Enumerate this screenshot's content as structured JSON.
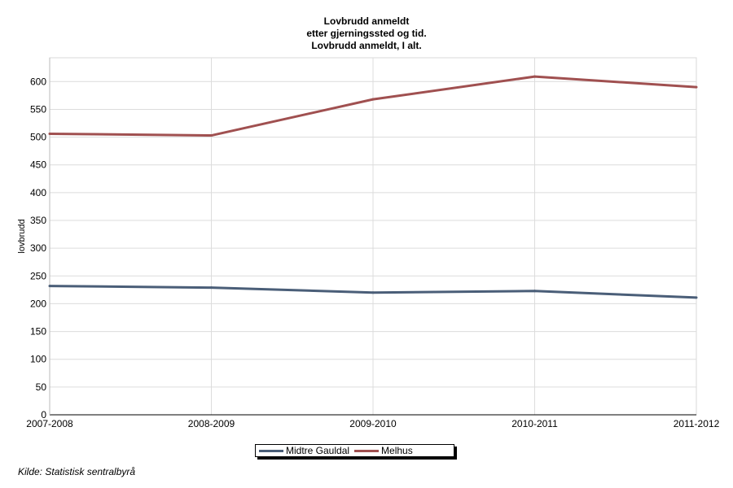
{
  "chart_data": {
    "type": "line",
    "title": [
      "Lovbrudd anmeldt",
      "etter gjerningssted og tid.",
      "Lovbrudd anmeldt, I alt."
    ],
    "xlabel": "",
    "ylabel": "lovbrudd",
    "categories": [
      "2007-2008",
      "2008-2009",
      "2009-2010",
      "2010-2011",
      "2011-2012"
    ],
    "ylim": [
      0,
      650
    ],
    "yticks": [
      0,
      50,
      100,
      150,
      200,
      250,
      300,
      350,
      400,
      450,
      500,
      550,
      600
    ],
    "grid": true,
    "legend_position": "bottom",
    "series": [
      {
        "name": "Midtre Gauldal",
        "color": "#4a5e78",
        "values": [
          232,
          229,
          220,
          223,
          211
        ]
      },
      {
        "name": "Melhus",
        "color": "#a05050",
        "values": [
          506,
          503,
          568,
          609,
          590
        ]
      }
    ]
  },
  "source": "Kilde: Statistisk sentralbyrå"
}
